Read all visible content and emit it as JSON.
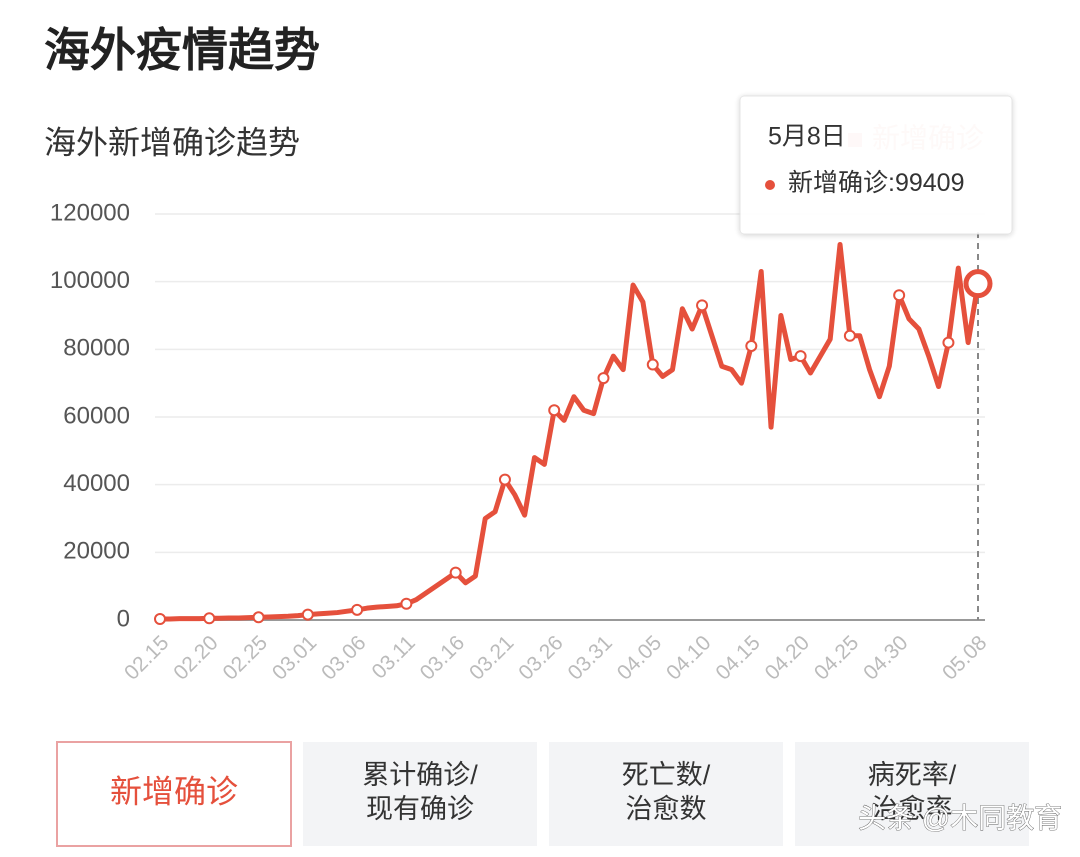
{
  "header": {
    "title": "海外疫情趋势"
  },
  "chart_data": {
    "type": "line",
    "title": "海外新增确诊趋势",
    "categories": [
      "02.15",
      null,
      null,
      null,
      null,
      "02.20",
      null,
      null,
      null,
      null,
      "02.25",
      null,
      null,
      null,
      null,
      "03.01",
      null,
      null,
      null,
      null,
      "03.06",
      null,
      null,
      null,
      null,
      "03.11",
      null,
      null,
      null,
      null,
      "03.16",
      null,
      null,
      null,
      null,
      "03.21",
      null,
      null,
      null,
      null,
      "03.26",
      null,
      null,
      null,
      null,
      "03.31",
      null,
      null,
      null,
      null,
      "04.05",
      null,
      null,
      null,
      null,
      "04.10",
      null,
      null,
      null,
      null,
      "04.15",
      null,
      null,
      null,
      null,
      "04.20",
      null,
      null,
      null,
      null,
      "04.25",
      null,
      null,
      null,
      null,
      "04.30",
      null,
      null,
      null,
      null,
      null,
      null,
      null,
      "05.08"
    ],
    "series": [
      {
        "name": "新增确诊",
        "color": "#e5503c",
        "values": [
          300,
          300,
          400,
          400,
          400,
          500,
          500,
          600,
          600,
          700,
          800,
          900,
          1000,
          1100,
          1300,
          1600,
          1800,
          2000,
          2200,
          2600,
          3000,
          3500,
          3800,
          4000,
          4200,
          4800,
          6000,
          8000,
          10000,
          12000,
          14000,
          11000,
          13000,
          30000,
          32000,
          41500,
          37000,
          31000,
          48000,
          46000,
          62000,
          59000,
          66000,
          62000,
          61000,
          71500,
          78000,
          74000,
          99000,
          94000,
          75500,
          72000,
          74000,
          92000,
          86000,
          93000,
          84000,
          75000,
          74000,
          70000,
          81000,
          103000,
          57000,
          90000,
          77000,
          78000,
          73000,
          78000,
          83000,
          111000,
          84000,
          84000,
          74000,
          66000,
          75000,
          96000,
          89000,
          86000,
          78000,
          69000,
          82000,
          104000,
          82000,
          99409
        ]
      }
    ],
    "ylim": [
      0,
      120000
    ],
    "yticks": [
      0,
      20000,
      40000,
      60000,
      80000,
      100000,
      120000
    ],
    "grid": true,
    "legend": "top-right",
    "tooltip": {
      "date": "5月8日",
      "separator": ":",
      "index": 83
    }
  },
  "tabs": {
    "selected": 0,
    "items": [
      {
        "lines": [
          "新增确诊"
        ]
      },
      {
        "lines": [
          "累计确诊/",
          "现有确诊"
        ]
      },
      {
        "lines": [
          "死亡数/",
          "治愈数"
        ]
      },
      {
        "lines": [
          "病死率/",
          "治愈率"
        ]
      }
    ]
  },
  "watermark": "头条 @木同教育"
}
